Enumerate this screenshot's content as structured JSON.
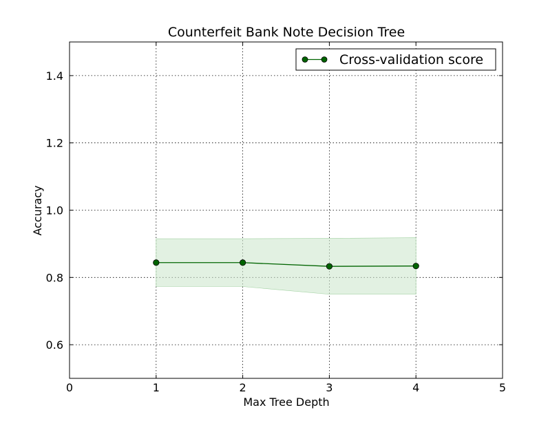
{
  "chart_data": {
    "type": "line",
    "title": "Counterfeit Bank Note Decision Tree",
    "xlabel": "Max Tree Depth",
    "ylabel": "Accuracy",
    "xlim": [
      0,
      5
    ],
    "ylim": [
      0.5,
      1.5
    ],
    "xticks": [
      0,
      1,
      2,
      3,
      4,
      5
    ],
    "xtick_labels": [
      "0",
      "1",
      "2",
      "3",
      "4",
      "5"
    ],
    "yticks": [
      0.6,
      0.8,
      1.0,
      1.2,
      1.4
    ],
    "ytick_labels": [
      "0.6",
      "0.8",
      "1.0",
      "1.2",
      "1.4"
    ],
    "grid": true,
    "legend_position": "top-right",
    "series": [
      {
        "name": "Cross-validation score",
        "color": "#006400",
        "marker": "circle",
        "x": [
          1,
          2,
          3,
          4
        ],
        "y": [
          0.844,
          0.844,
          0.833,
          0.834
        ],
        "band_lower": [
          0.773,
          0.773,
          0.75,
          0.75
        ],
        "band_upper": [
          0.915,
          0.915,
          0.916,
          0.918
        ],
        "band_color": "#cfe8cf"
      }
    ]
  }
}
